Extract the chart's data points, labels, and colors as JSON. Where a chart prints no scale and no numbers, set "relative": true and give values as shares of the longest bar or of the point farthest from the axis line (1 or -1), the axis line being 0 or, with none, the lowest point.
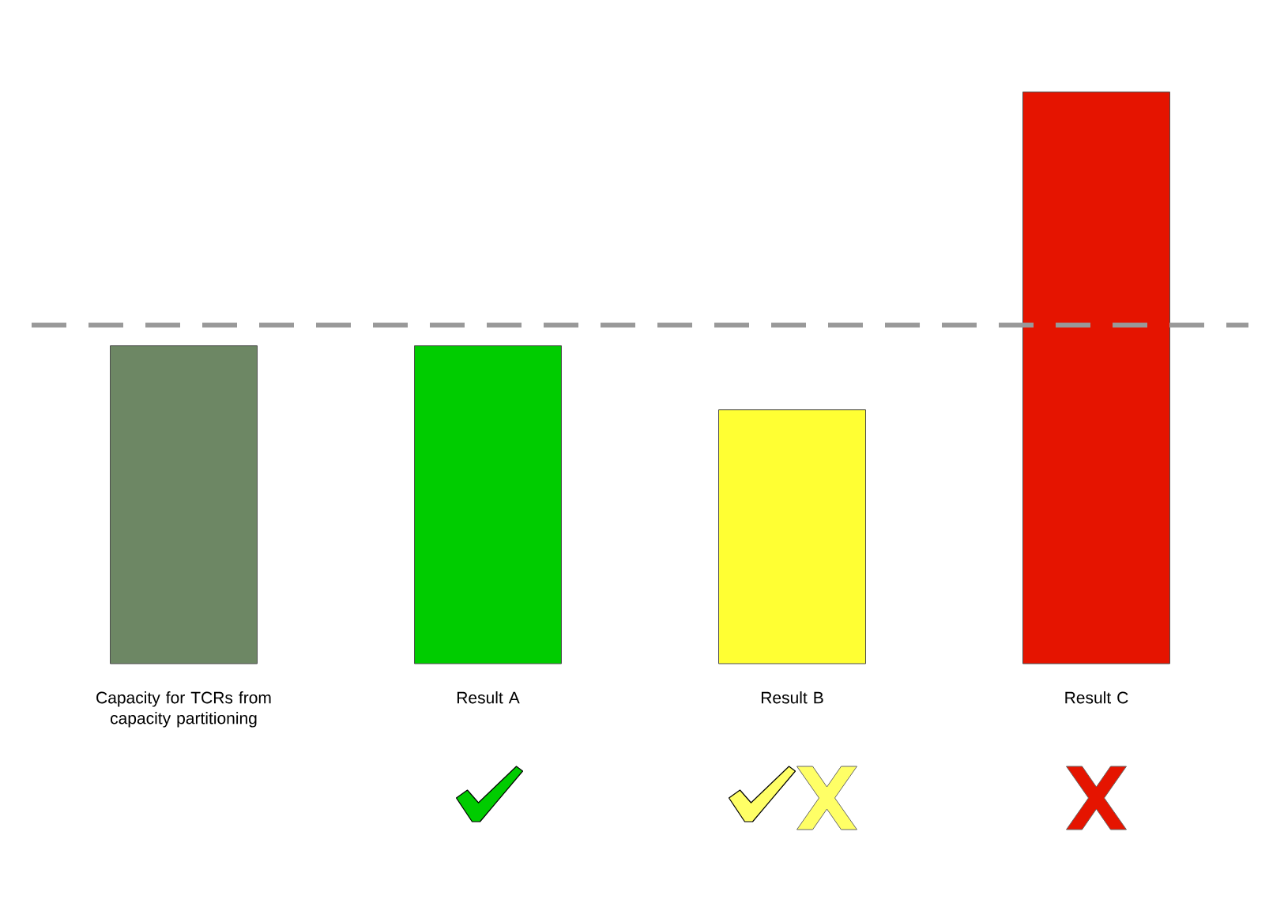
{
  "chart_data": {
    "type": "bar",
    "relative": true,
    "categories": [
      "Capacity for TCRs from capacity partitioning",
      "Result A",
      "Result B",
      "Result C"
    ],
    "values": [
      0.556,
      0.556,
      0.444,
      1
    ],
    "colors": [
      "#6d8764",
      "#00cc00",
      "#ffff33",
      "#e51400"
    ],
    "ref_lines": [
      {
        "axis": "y",
        "value": 0.592,
        "color": "#999999",
        "line_style": "dashed"
      }
    ]
  }
}
